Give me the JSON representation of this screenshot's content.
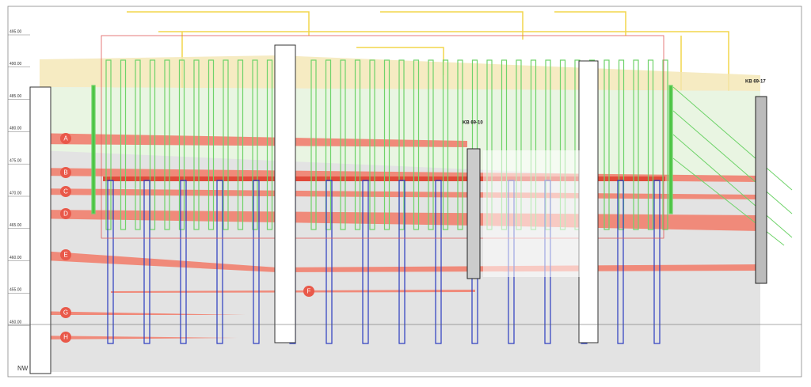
{
  "elevations": [
    "495.00",
    "490.00",
    "485.00",
    "480.00",
    "475.00",
    "470.00",
    "465.00",
    "460.00",
    "455.00",
    "450.00"
  ],
  "layers": [
    "A",
    "B",
    "C",
    "D",
    "E",
    "F",
    "G",
    "H"
  ],
  "boreholes": [
    "KB 69-10",
    "KB 69-17"
  ],
  "direction": "NW"
}
